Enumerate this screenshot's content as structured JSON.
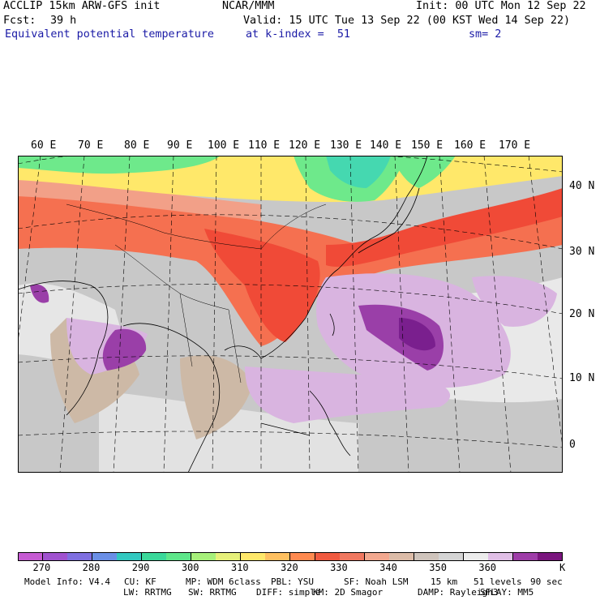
{
  "header": {
    "model_line": "ACCLIP 15km ARW-GFS init",
    "org": "NCAR/MMM",
    "init": "Init: 00 UTC Mon 12 Sep 22",
    "fcst_label": "Fcst:",
    "fcst_value": "39 h",
    "valid": "Valid: 15 UTC Tue 13 Sep 22 (00 KST Wed 14 Sep 22)",
    "field_name": "Equivalent potential temperature",
    "level": "at k-index =  51",
    "smoothing": "sm= 2"
  },
  "map": {
    "lon_labels": [
      "60 E",
      "70 E",
      "80 E",
      "90 E",
      "100 E",
      "110 E",
      "120 E",
      "130 E",
      "140 E",
      "150 E",
      "160 E",
      "170 E"
    ],
    "lat_labels": [
      "40 N",
      "30 N",
      "20 N",
      "10 N",
      "0"
    ],
    "region_colors": {
      "background_gray": "#c8c8c8",
      "light_gray": "#dcdcdc",
      "whitish": "#eeeeee",
      "tan": "#c9b3a0",
      "orange_red": "#f57050",
      "red": "#f04a37",
      "salmon": "#f2a088",
      "yellow": "#ffe86a",
      "green": "#6ee98b",
      "teal": "#45d8b0",
      "lavender": "#d9b4e0",
      "purple": "#9a3fa8",
      "dark_purple": "#7a1f8e"
    }
  },
  "colorbar": {
    "colors": [
      "#c65bd3",
      "#a052cf",
      "#7f6fe0",
      "#6a8fe6",
      "#32c8c0",
      "#3ad89a",
      "#5ee68a",
      "#a6f07a",
      "#e6f07a",
      "#ffe86a",
      "#ffc060",
      "#ff8a50",
      "#f05a40",
      "#f07860",
      "#f2a88f",
      "#dcbca8",
      "#cfc4bc",
      "#d4d4d4",
      "#ececec",
      "#e0bfe6",
      "#9e3da8",
      "#7a157e"
    ],
    "labels": [
      "270",
      "280",
      "290",
      "300",
      "310",
      "320",
      "330",
      "340",
      "350",
      "360"
    ],
    "unit": "K"
  },
  "model_info": {
    "line1": [
      "Model Info: V4.4",
      "CU: KF",
      "MP: WDM 6class",
      "PBL: YSU",
      "SF: Noah LSM",
      "15 km",
      "51 levels",
      "90 sec"
    ],
    "line2": [
      "LW: RRTMG",
      "SW: RRTMG",
      "DIFF: simple",
      "KM: 2D Smagor",
      "DAMP: Rayleigh3",
      "SFLAY: MM5"
    ]
  }
}
